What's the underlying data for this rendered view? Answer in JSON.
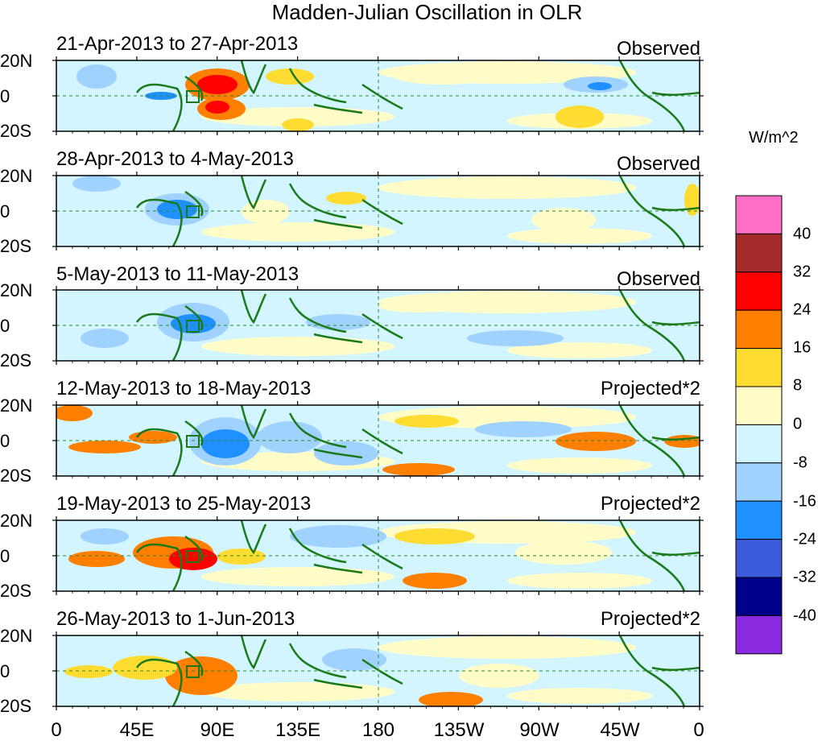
{
  "title": "Madden-Julian Oscillation in OLR",
  "units_label": "W/m^2",
  "lat_labels": [
    "20N",
    "0",
    "20S"
  ],
  "lon_labels": [
    "0",
    "45E",
    "90E",
    "135E",
    "180",
    "135W",
    "90W",
    "45W",
    "0"
  ],
  "colorbar": {
    "colors": [
      "#ff6ec7",
      "#a52a2a",
      "#ff0000",
      "#ff7f00",
      "#ffdc32",
      "#fffcc8",
      "#d2f5ff",
      "#a0d2ff",
      "#1e90ff",
      "#3c5adc",
      "#00008b",
      "#8a2be2"
    ],
    "labels": [
      "40",
      "32",
      "24",
      "16",
      "8",
      "0",
      "-8",
      "-16",
      "-24",
      "-32",
      "-40"
    ]
  },
  "panels": [
    {
      "date": "21-Apr-2013 to 27-Apr-2013",
      "kind": "Observed"
    },
    {
      "date": "28-Apr-2013 to 4-May-2013",
      "kind": "Observed"
    },
    {
      "date": "5-May-2013 to 11-May-2013",
      "kind": "Observed"
    },
    {
      "date": "12-May-2013 to 18-May-2013",
      "kind": "Projected*2"
    },
    {
      "date": "19-May-2013 to 25-May-2013",
      "kind": "Projected*2"
    },
    {
      "date": "26-May-2013 to 1-Jun-2013",
      "kind": "Projected*2"
    }
  ]
}
